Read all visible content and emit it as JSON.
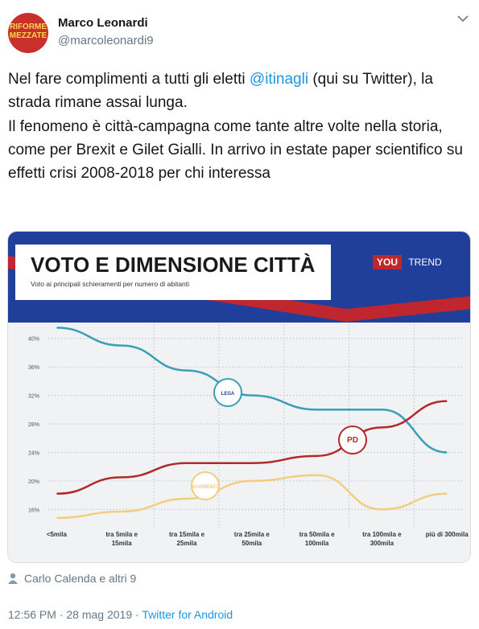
{
  "tweet": {
    "avatar": [
      "RIFORME",
      "MEZZATE"
    ],
    "author_name": "Marco Leonardi",
    "handle": "@marcoleonardi9",
    "text_before": "Nel fare complimenti a tutti gli eletti ",
    "mention": "@itinagli",
    "text_after": " (qui su Twitter), la strada rimane assai lunga.",
    "text_p2": "Il fenomeno è città-campagna come tante altre volte nella storia, come per Brexit e Gilet Gialli. In arrivo in estate paper scientifico su effetti crisi 2008-2018 per chi interessa",
    "liked_by": "Carlo Calenda e altri 9",
    "time": "12:56 PM",
    "date": "28 mag 2019",
    "source": "Twitter for Android"
  },
  "chart_data": {
    "type": "line",
    "title": "VOTO E DIMENSIONE CITTÀ",
    "subtitle": "Voto ai principali schieramenti per numero di abitanti",
    "brand": [
      "YOU",
      "TREND"
    ],
    "categories": [
      "<5mila",
      "tra 5mila e 15mila",
      "tra 15mila e 25mila",
      "tra 25mila e 50mila",
      "tra 50mila e 100mila",
      "tra 100mila e 300mila",
      "più di 300mila"
    ],
    "series": [
      {
        "name": "LEGA",
        "color": "#3a9fb5",
        "values": [
          41.5,
          39,
          35.5,
          32,
          30,
          30,
          24
        ]
      },
      {
        "name": "PD",
        "color": "#b02a2a",
        "values": [
          18.2,
          20.5,
          22.5,
          22.5,
          23.5,
          27.5,
          31.2
        ]
      },
      {
        "name": "MoVIMENTO",
        "color": "#f2cd7e",
        "values": [
          14.8,
          15.7,
          17.5,
          20,
          20.8,
          16,
          18.2
        ]
      }
    ],
    "ylim": [
      14,
      42
    ],
    "yticks": [
      {
        "value": 16,
        "label": "16%"
      },
      {
        "value": 20,
        "label": "20%"
      },
      {
        "value": 24,
        "label": "24%"
      },
      {
        "value": 28,
        "label": "28%"
      },
      {
        "value": 32,
        "label": "32%"
      },
      {
        "value": 36,
        "label": "36%"
      },
      {
        "value": 40,
        "label": "40%"
      }
    ],
    "grid": true
  }
}
